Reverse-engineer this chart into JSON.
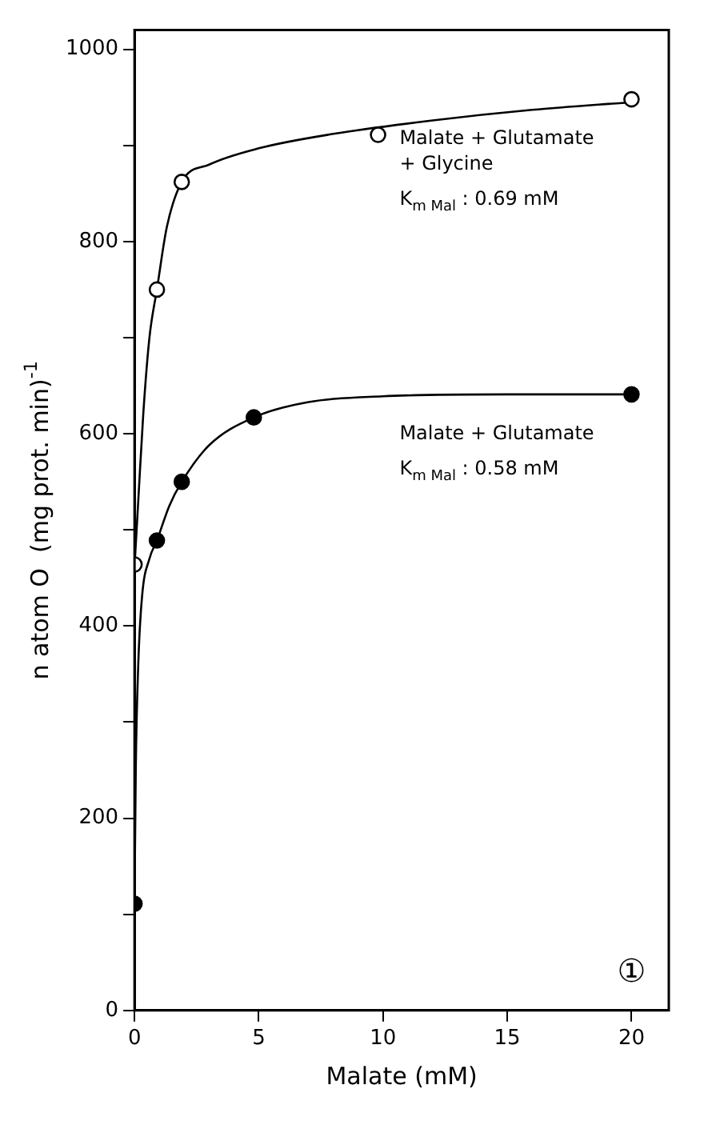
{
  "chart_data": {
    "type": "scatter",
    "xlabel": "Malate (mM)",
    "ylabel": "n atom O  (mg prot. min)$^{-1}$",
    "xlim": [
      0,
      21.5
    ],
    "ylim": [
      0,
      1020
    ],
    "xticks": [
      0,
      5,
      10,
      15,
      20
    ],
    "yticks": [
      0,
      {
        "value": 100,
        "label": null
      },
      200,
      {
        "value": 300,
        "label": null
      },
      400,
      {
        "value": 500,
        "label": null
      },
      600,
      {
        "value": 700,
        "label": null
      },
      800,
      {
        "value": 900,
        "label": null
      },
      1000
    ],
    "grid": false,
    "legend": false,
    "marker": "circle",
    "series": [
      {
        "name": "Malate + Glutamate + Glycine",
        "color": "#000000",
        "x": [
          0,
          0.9,
          1.9,
          9.8,
          20
        ],
        "values": [
          464,
          750,
          862,
          911,
          948
        ]
      },
      {
        "name": "Malate + Glutamate",
        "color": "#000000",
        "x": [
          0,
          0.9,
          1.9,
          4.8,
          20
        ],
        "values": [
          111,
          489,
          550,
          617,
          641
        ]
      },
      {
        "type": "line",
        "marker": "none",
        "color": "#000000",
        "x": [
          0,
          0.15,
          0.35,
          0.6,
          0.9,
          1.3,
          1.9,
          3,
          5,
          8,
          12,
          16,
          20
        ],
        "values": [
          462,
          530,
          620,
          700,
          750,
          815,
          862,
          880,
          897,
          912,
          926,
          937,
          945
        ]
      },
      {
        "type": "line",
        "marker": "none",
        "color": "#000000",
        "x": [
          0,
          0.05,
          0.15,
          0.3,
          0.6,
          0.9,
          1.4,
          1.9,
          3,
          4.8,
          7,
          10,
          15,
          20
        ],
        "values": [
          111,
          250,
          360,
          430,
          470,
          489,
          525,
          550,
          588,
          617,
          633,
          639,
          641,
          641
        ]
      }
    ],
    "annotations": [
      "K$_{m Mal}$ : 0.69 mM",
      "K$_{m Mal}$ : 0.58 mM",
      "①"
    ]
  }
}
